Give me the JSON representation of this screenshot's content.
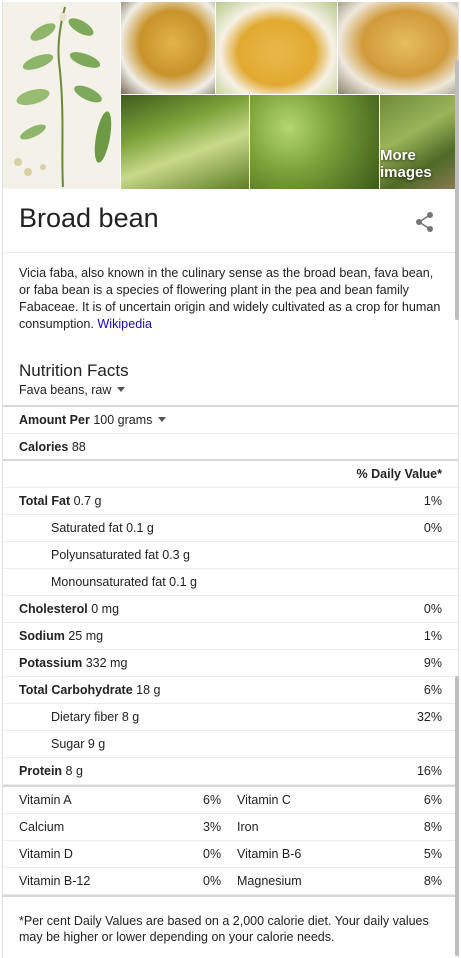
{
  "images": {
    "more_images_label": "More images"
  },
  "title": "Broad bean",
  "description": {
    "text": "Vicia faba, also known in the culinary sense as the broad bean, fava bean, or faba bean is a species of flowering plant in the pea and bean family Fabaceae. It is of uncertain origin and widely cultivated as a crop for human consumption.",
    "source_link": "Wikipedia"
  },
  "nutrition": {
    "title": "Nutrition Facts",
    "food_select": "Fava beans, raw",
    "amount_label": "Amount Per",
    "amount_select": "100 grams",
    "calories_label": "Calories",
    "calories_value": "88",
    "daily_value_header": "% Daily Value*",
    "rows": [
      {
        "label": "Total Fat",
        "amount": "0.7 g",
        "dv": "1%",
        "bold": true,
        "indent": false
      },
      {
        "label": "Saturated fat",
        "amount": "0.1 g",
        "dv": "0%",
        "bold": false,
        "indent": true
      },
      {
        "label": "Polyunsaturated fat",
        "amount": "0.3 g",
        "dv": "",
        "bold": false,
        "indent": true
      },
      {
        "label": "Monounsaturated fat",
        "amount": "0.1 g",
        "dv": "",
        "bold": false,
        "indent": true
      },
      {
        "label": "Cholesterol",
        "amount": "0 mg",
        "dv": "0%",
        "bold": true,
        "indent": false
      },
      {
        "label": "Sodium",
        "amount": "25 mg",
        "dv": "1%",
        "bold": true,
        "indent": false
      },
      {
        "label": "Potassium",
        "amount": "332 mg",
        "dv": "9%",
        "bold": true,
        "indent": false
      },
      {
        "label": "Total Carbohydrate",
        "amount": "18 g",
        "dv": "6%",
        "bold": true,
        "indent": false
      },
      {
        "label": "Dietary fiber",
        "amount": "8 g",
        "dv": "32%",
        "bold": false,
        "indent": true
      },
      {
        "label": "Sugar",
        "amount": "9 g",
        "dv": "",
        "bold": false,
        "indent": true
      },
      {
        "label": "Protein",
        "amount": "8 g",
        "dv": "16%",
        "bold": true,
        "indent": false
      }
    ],
    "vitamins": [
      {
        "left_name": "Vitamin A",
        "left_pct": "6%",
        "right_name": "Vitamin C",
        "right_pct": "6%"
      },
      {
        "left_name": "Calcium",
        "left_pct": "3%",
        "right_name": "Iron",
        "right_pct": "8%"
      },
      {
        "left_name": "Vitamin D",
        "left_pct": "0%",
        "right_name": "Vitamin B-6",
        "right_pct": "5%"
      },
      {
        "left_name": "Vitamin B-12",
        "left_pct": "0%",
        "right_name": "Magnesium",
        "right_pct": "8%"
      }
    ],
    "footnote": "*Per cent Daily Values are based on a 2,000 calorie diet. Your daily values may be higher or lower depending on your calorie needs."
  },
  "colors": {
    "link": "#1a0dab",
    "text": "#222222",
    "divider": "#ebebeb"
  }
}
